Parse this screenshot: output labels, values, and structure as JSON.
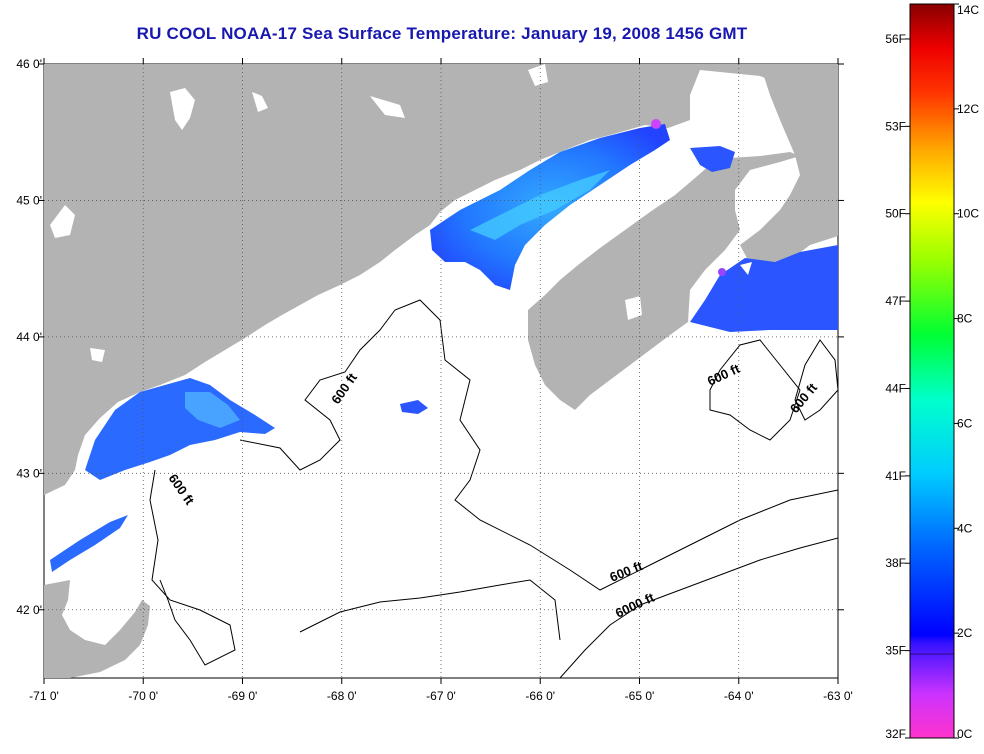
{
  "title": "RU COOL  NOAA-17  Sea Surface Temperature:  January 19, 2008 1456 GMT",
  "map": {
    "lon_ticks": [
      "-71 0'",
      "-70 0'",
      "-69 0'",
      "-68 0'",
      "-67 0'",
      "-66 0'",
      "-65 0'",
      "-64 0'",
      "-63 0'"
    ],
    "lat_ticks": [
      "46 0'",
      "45 0'",
      "44 0'",
      "43 0'",
      "42 0'"
    ],
    "lon_range": [
      -71,
      -63
    ],
    "lat_range": [
      41.5,
      46
    ],
    "land_color": "#b3b3b3",
    "no_data_color": "#ffffff",
    "contour_labels": [
      "600 ft",
      "600 ft",
      "600 ft",
      "600 ft",
      "600 ft",
      "6000 ft"
    ]
  },
  "colorbar": {
    "celsius_labels": [
      "14C",
      "12C",
      "10C",
      "8C",
      "6C",
      "4C",
      "2C",
      "0C"
    ],
    "fahrenheit_labels": [
      "56F",
      "53F",
      "50F",
      "47F",
      "44F",
      "41F",
      "38F",
      "35F",
      "32F"
    ],
    "celsius_range": [
      0,
      14
    ],
    "fahrenheit_values": [
      56,
      53,
      50,
      47,
      44,
      41,
      38,
      35,
      32
    ],
    "gradient_colors": [
      "#ff33cc",
      "#cc33ff",
      "#0000ff",
      "#0099ff",
      "#00ffff",
      "#00ff66",
      "#99ff00",
      "#ffff00",
      "#ff9900",
      "#ff0000",
      "#990000"
    ]
  }
}
